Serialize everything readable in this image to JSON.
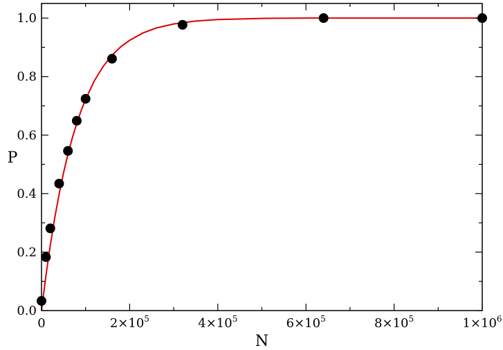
{
  "chart_data": {
    "type": "scatter",
    "xlabel": "N",
    "ylabel": "P",
    "xlim": [
      0,
      1000000
    ],
    "ylim": [
      0,
      1.05
    ],
    "grid": false,
    "x_ticks": [
      {
        "value": 0,
        "label": "0"
      },
      {
        "value": 200000,
        "base": "2×10",
        "exp": "5"
      },
      {
        "value": 400000,
        "base": "4×10",
        "exp": "5"
      },
      {
        "value": 600000,
        "base": "6×10",
        "exp": "5"
      },
      {
        "value": 800000,
        "base": "8×10",
        "exp": "5"
      },
      {
        "value": 1000000,
        "base": "1×10",
        "exp": "6"
      }
    ],
    "y_ticks": [
      {
        "value": 0.0,
        "label": "0.0"
      },
      {
        "value": 0.2,
        "label": "0.2"
      },
      {
        "value": 0.4,
        "label": "0.4"
      },
      {
        "value": 0.6,
        "label": "0.6"
      },
      {
        "value": 0.8,
        "label": "0.8"
      },
      {
        "value": 1.0,
        "label": "1.0"
      }
    ],
    "series": [
      {
        "kind": "points",
        "color": "#000000",
        "points": [
          {
            "x": 0,
            "y": 0.033
          },
          {
            "x": 10000,
            "y": 0.183
          },
          {
            "x": 20000,
            "y": 0.281
          },
          {
            "x": 40000,
            "y": 0.434
          },
          {
            "x": 60000,
            "y": 0.546
          },
          {
            "x": 80000,
            "y": 0.649
          },
          {
            "x": 100000,
            "y": 0.724
          },
          {
            "x": 160000,
            "y": 0.861
          },
          {
            "x": 320000,
            "y": 0.977
          },
          {
            "x": 640000,
            "y": 1.0
          },
          {
            "x": 1000000,
            "y": 1.0
          }
        ]
      },
      {
        "kind": "fit-curve",
        "color": "#dd0000",
        "points": [
          {
            "x": 0,
            "y": 0.0
          },
          {
            "x": 5000,
            "y": 0.06
          },
          {
            "x": 10000,
            "y": 0.119
          },
          {
            "x": 20000,
            "y": 0.224
          },
          {
            "x": 30000,
            "y": 0.317
          },
          {
            "x": 40000,
            "y": 0.398
          },
          {
            "x": 50000,
            "y": 0.471
          },
          {
            "x": 60000,
            "y": 0.535
          },
          {
            "x": 70000,
            "y": 0.591
          },
          {
            "x": 80000,
            "y": 0.64
          },
          {
            "x": 90000,
            "y": 0.684
          },
          {
            "x": 100000,
            "y": 0.722
          },
          {
            "x": 120000,
            "y": 0.786
          },
          {
            "x": 140000,
            "y": 0.835
          },
          {
            "x": 160000,
            "y": 0.873
          },
          {
            "x": 180000,
            "y": 0.902
          },
          {
            "x": 200000,
            "y": 0.924
          },
          {
            "x": 230000,
            "y": 0.949
          },
          {
            "x": 260000,
            "y": 0.966
          },
          {
            "x": 300000,
            "y": 0.98
          },
          {
            "x": 350000,
            "y": 0.99
          },
          {
            "x": 400000,
            "y": 0.995
          },
          {
            "x": 500000,
            "y": 0.999
          },
          {
            "x": 600000,
            "y": 1.0
          },
          {
            "x": 800000,
            "y": 1.0
          },
          {
            "x": 1000000,
            "y": 1.0
          }
        ]
      }
    ]
  }
}
